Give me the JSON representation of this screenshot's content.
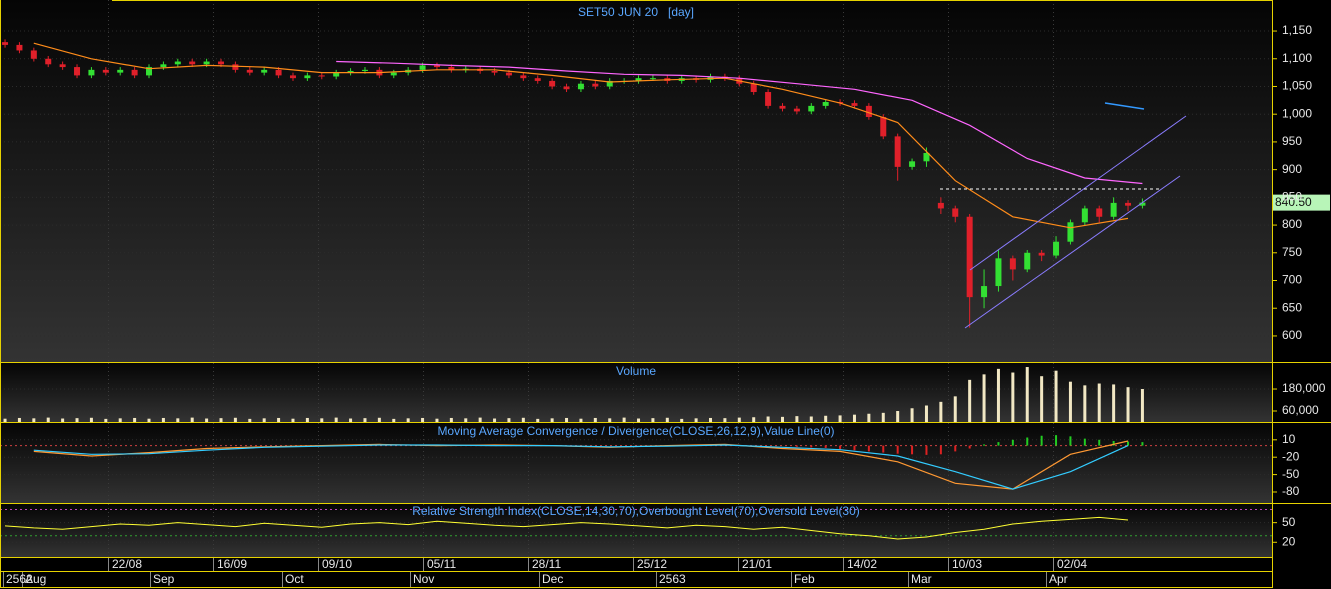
{
  "x_axis": {
    "xlim": [
      -0.35,
      88
    ],
    "dates": [
      "22/08",
      "16/09",
      "09/10",
      "05/11",
      "28/11",
      "25/12",
      "21/01",
      "14/02",
      "10/03",
      "02/04"
    ],
    "months": [
      "2562",
      "Aug",
      "Sep",
      "Oct",
      "Nov",
      "Dec",
      "2563",
      "Feb",
      "Mar",
      "Apr"
    ]
  },
  "chart_data": [
    {
      "type": "candlestick",
      "title": "SET50 JUN 20   [day]",
      "open": [
        1130,
        1125,
        1115,
        1100,
        1090,
        1085,
        1070,
        1080,
        1075,
        1080,
        1070,
        1085,
        1090,
        1095,
        1090,
        1095,
        1090,
        1080,
        1075,
        1080,
        1070,
        1065,
        1070,
        1068,
        1075,
        1078,
        1080,
        1070,
        1075,
        1080,
        1088,
        1085,
        1080,
        1082,
        1078,
        1075,
        1070,
        1065,
        1060,
        1050,
        1045,
        1055,
        1050,
        1060,
        1060,
        1065,
        1065,
        1060,
        1065,
        1062,
        1068,
        1065,
        1055,
        1040,
        1015,
        1010,
        1005,
        1015,
        1022,
        1020,
        1015,
        995,
        960,
        905,
        915,
        840,
        830,
        815,
        670,
        690,
        740,
        720,
        750,
        745,
        770,
        805,
        830,
        815,
        840,
        835
      ],
      "high": [
        1135,
        1130,
        1120,
        1105,
        1095,
        1090,
        1085,
        1085,
        1085,
        1085,
        1090,
        1095,
        1100,
        1100,
        1100,
        1100,
        1095,
        1085,
        1085,
        1085,
        1075,
        1075,
        1075,
        1080,
        1083,
        1085,
        1085,
        1080,
        1085,
        1093,
        1093,
        1090,
        1087,
        1087,
        1083,
        1080,
        1075,
        1070,
        1065,
        1055,
        1060,
        1060,
        1065,
        1065,
        1070,
        1070,
        1070,
        1070,
        1070,
        1073,
        1073,
        1070,
        1060,
        1045,
        1020,
        1015,
        1020,
        1027,
        1027,
        1025,
        1020,
        1000,
        965,
        920,
        940,
        850,
        835,
        820,
        720,
        755,
        745,
        755,
        755,
        780,
        810,
        835,
        835,
        850,
        845,
        848
      ],
      "low": [
        1120,
        1110,
        1095,
        1085,
        1080,
        1065,
        1065,
        1070,
        1070,
        1065,
        1065,
        1080,
        1085,
        1085,
        1085,
        1085,
        1075,
        1070,
        1070,
        1065,
        1060,
        1060,
        1063,
        1063,
        1070,
        1073,
        1065,
        1065,
        1070,
        1075,
        1080,
        1075,
        1075,
        1073,
        1070,
        1065,
        1060,
        1055,
        1045,
        1040,
        1040,
        1045,
        1045,
        1055,
        1055,
        1060,
        1055,
        1055,
        1057,
        1057,
        1060,
        1050,
        1035,
        1010,
        1005,
        1000,
        1000,
        1010,
        1015,
        1010,
        990,
        955,
        880,
        900,
        905,
        820,
        805,
        615,
        650,
        680,
        700,
        715,
        735,
        740,
        765,
        800,
        805,
        810,
        825,
        830
      ],
      "close": [
        1125,
        1115,
        1100,
        1090,
        1085,
        1070,
        1080,
        1075,
        1080,
        1070,
        1085,
        1090,
        1095,
        1090,
        1095,
        1090,
        1080,
        1075,
        1080,
        1070,
        1065,
        1070,
        1068,
        1075,
        1078,
        1080,
        1070,
        1075,
        1080,
        1088,
        1085,
        1080,
        1082,
        1078,
        1075,
        1070,
        1065,
        1060,
        1050,
        1045,
        1055,
        1050,
        1060,
        1060,
        1065,
        1065,
        1060,
        1065,
        1062,
        1068,
        1065,
        1055,
        1040,
        1015,
        1010,
        1005,
        1015,
        1022,
        1020,
        1015,
        995,
        960,
        905,
        915,
        930,
        830,
        815,
        670,
        690,
        740,
        720,
        750,
        745,
        770,
        805,
        830,
        815,
        840,
        835,
        840.5
      ],
      "up_color": "#33e033",
      "down_color": "#e0202a",
      "last_value_label": "840.50",
      "last_label_color": "#b8f5b8",
      "series": [
        {
          "color": "#ff8c1a",
          "x": [
            2,
            6,
            10,
            14,
            18,
            22,
            26,
            30,
            34,
            38,
            42,
            46,
            50,
            54,
            58,
            62,
            66,
            70,
            74,
            78
          ],
          "values": [
            1128,
            1100,
            1082,
            1088,
            1085,
            1075,
            1075,
            1080,
            1080,
            1070,
            1058,
            1062,
            1065,
            1045,
            1020,
            985,
            880,
            815,
            795,
            812
          ]
        },
        {
          "color": "#ff66ff",
          "x": [
            23,
            27,
            31,
            35,
            39,
            43,
            47,
            51,
            55,
            59,
            63,
            67,
            71,
            75,
            79
          ],
          "values": [
            1095,
            1092,
            1088,
            1085,
            1078,
            1072,
            1070,
            1065,
            1055,
            1045,
            1025,
            980,
            920,
            885,
            875
          ]
        }
      ],
      "ylim": [
        553,
        1206
      ],
      "yticks": [
        {
          "value": 1150,
          "label": "1,150"
        },
        {
          "value": 1100,
          "label": "1,100"
        },
        {
          "value": 1050,
          "label": "1,050"
        },
        {
          "value": 1000,
          "label": "1,000"
        },
        950,
        900,
        850,
        800,
        750,
        700,
        650,
        600
      ]
    },
    {
      "type": "bar",
      "title": "Volume",
      "color": "#f2e8c4",
      "values": [
        18000,
        22000,
        20000,
        24000,
        19000,
        21000,
        23000,
        17000,
        20000,
        22000,
        18000,
        22000,
        20000,
        24000,
        19000,
        21000,
        23000,
        17000,
        20000,
        22000,
        18000,
        22000,
        20000,
        24000,
        19000,
        21000,
        23000,
        17000,
        20000,
        22000,
        18000,
        22000,
        20000,
        24000,
        19000,
        21000,
        23000,
        17000,
        20000,
        22000,
        18000,
        22000,
        20000,
        24000,
        19000,
        21000,
        23000,
        17000,
        20000,
        22000,
        21000,
        24000,
        26000,
        30000,
        28000,
        32000,
        30000,
        34000,
        36000,
        40000,
        45000,
        50000,
        60000,
        75000,
        90000,
        110000,
        140000,
        230000,
        260000,
        290000,
        270000,
        300000,
        250000,
        280000,
        220000,
        200000,
        210000,
        205000,
        190000,
        180000
      ],
      "ylim": [
        0,
        322000
      ],
      "yticks": [
        {
          "value": 180000,
          "label": "180,000"
        },
        {
          "value": 60000,
          "label": "60,000"
        }
      ]
    },
    {
      "type": "macd",
      "title": "Moving Average Convergence / Divergence(CLOSE,26,12,9),Value Line(0)",
      "x": [
        2,
        6,
        10,
        14,
        18,
        22,
        26,
        30,
        34,
        38,
        42,
        46,
        50,
        54,
        58,
        62,
        66,
        70,
        74,
        78
      ],
      "series": [
        {
          "color": "#ff9933",
          "values": [
            -10,
            -18,
            -12,
            -5,
            -2,
            0,
            2,
            0,
            1,
            0,
            -3,
            0,
            2,
            -5,
            -10,
            -28,
            -65,
            -75,
            -15,
            8
          ]
        },
        {
          "color": "#33ccff",
          "values": [
            -8,
            -15,
            -14,
            -8,
            -3,
            -1,
            1,
            1,
            0,
            0,
            -2,
            -1,
            1,
            -3,
            -7,
            -18,
            -45,
            -75,
            -45,
            0
          ]
        }
      ],
      "histogram": {
        "x": [
          55,
          56,
          57,
          58,
          59,
          60,
          61,
          62,
          63,
          64,
          65,
          66,
          67,
          68,
          69,
          70,
          71,
          72,
          73,
          74,
          75,
          76,
          77,
          78,
          79
        ],
        "values": [
          -2,
          -3,
          -4,
          -6,
          -8,
          -10,
          -12,
          -14,
          -15,
          -16,
          -15,
          -10,
          -5,
          2,
          6,
          10,
          14,
          17,
          18,
          16,
          12,
          10,
          8,
          7,
          6
        ],
        "up_color": "#22cc22",
        "down_color": "#dd2222"
      },
      "value_line": 0,
      "value_line_color": "#d04040",
      "ylim": [
        -99,
        39
      ],
      "yticks": [
        10,
        -20,
        -50,
        -80
      ]
    },
    {
      "type": "line",
      "title": "Relative Strength Index(CLOSE,14,30,70),Overbought Level(70),Oversold Level(30)",
      "x": [
        0,
        2,
        4,
        6,
        8,
        10,
        12,
        14,
        16,
        18,
        20,
        22,
        24,
        26,
        28,
        30,
        32,
        34,
        36,
        38,
        40,
        42,
        44,
        46,
        48,
        50,
        52,
        54,
        56,
        58,
        60,
        62,
        64,
        66,
        68,
        70,
        72,
        74,
        76,
        78
      ],
      "series": [
        {
          "color": "#ffff33",
          "values": [
            45,
            42,
            40,
            44,
            48,
            46,
            50,
            47,
            44,
            49,
            46,
            43,
            48,
            50,
            47,
            52,
            49,
            46,
            44,
            47,
            50,
            48,
            45,
            42,
            46,
            44,
            40,
            43,
            38,
            33,
            30,
            25,
            28,
            35,
            40,
            48,
            52,
            55,
            58,
            54
          ]
        }
      ],
      "levels": [
        {
          "value": 70,
          "color": "#c040c0"
        },
        {
          "value": 30,
          "color": "#30a030"
        }
      ],
      "ylim": [
        -2.5,
        78.5
      ],
      "yticks": [
        50,
        20
      ]
    }
  ]
}
